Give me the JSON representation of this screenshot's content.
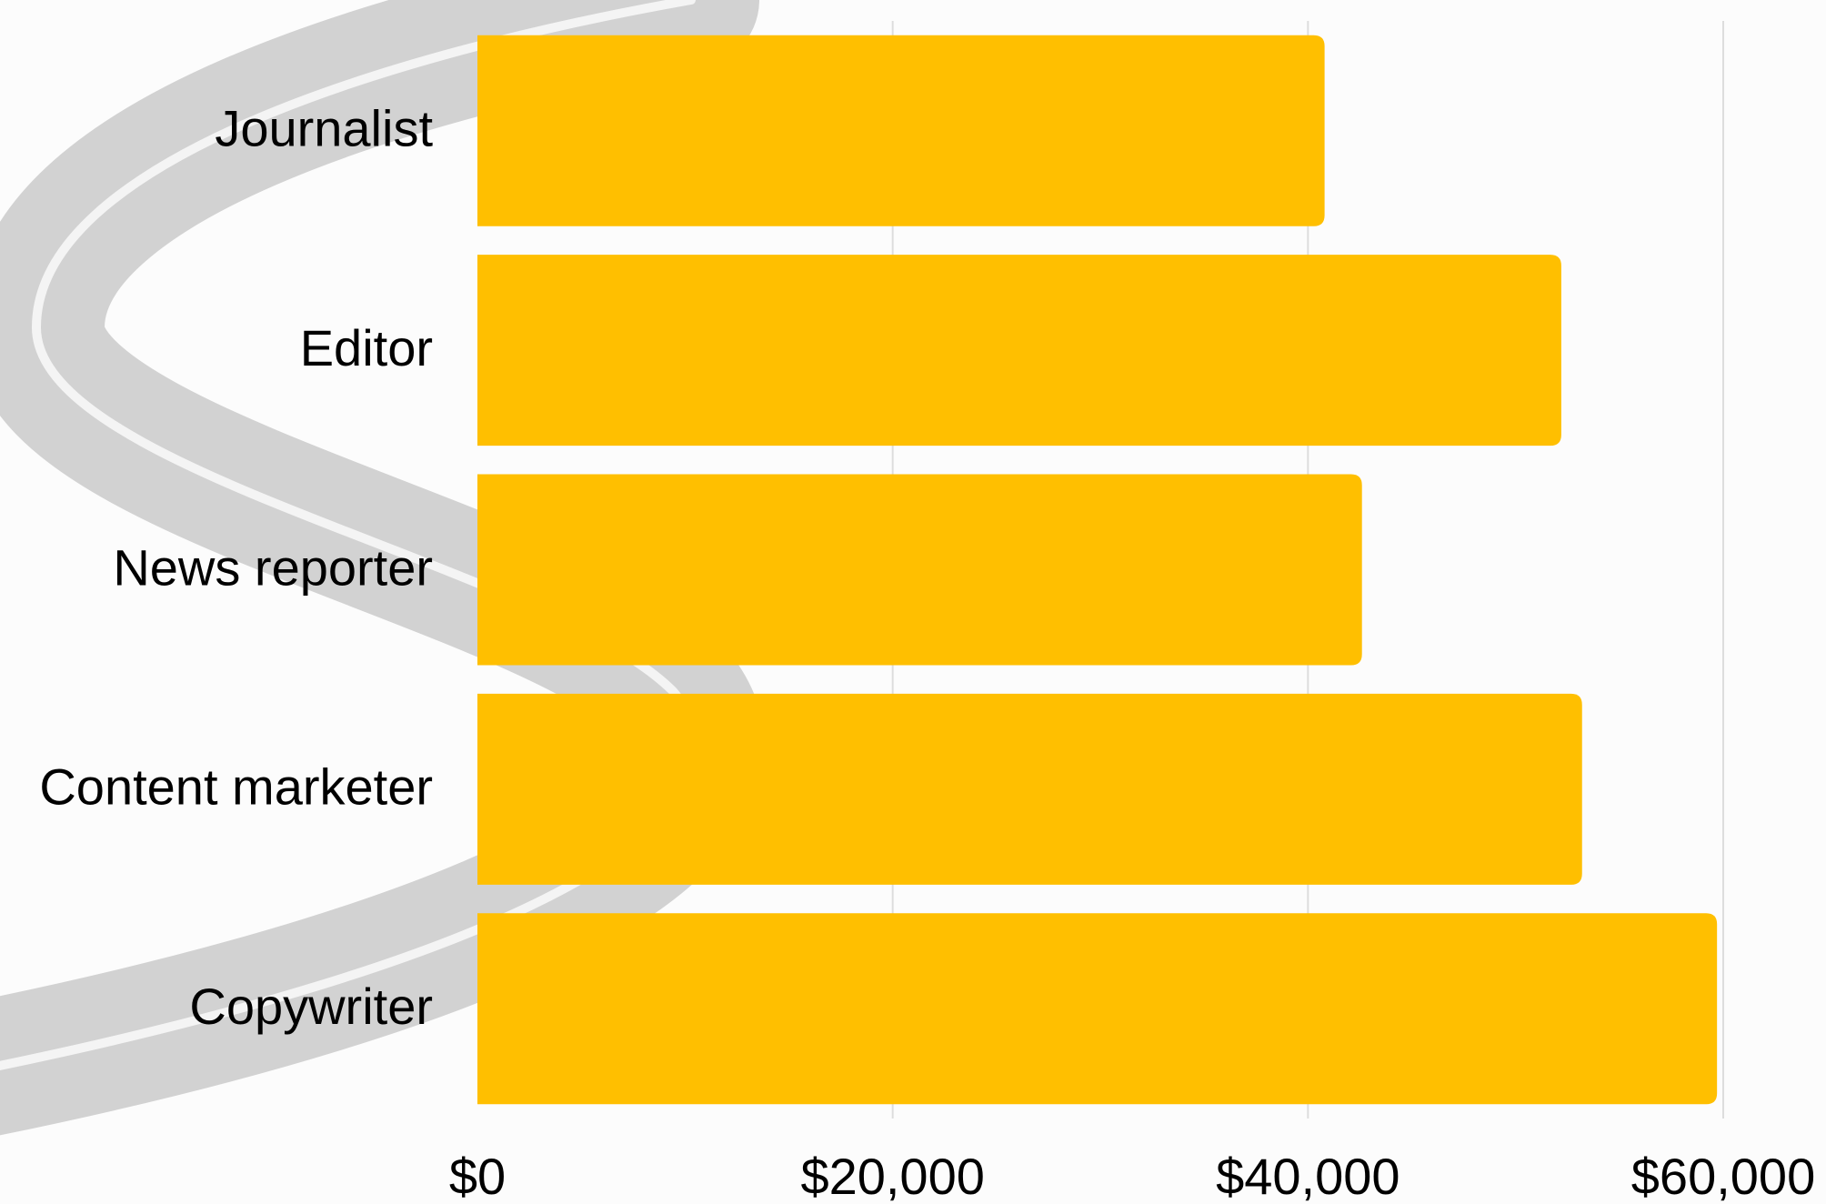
{
  "chart_data": {
    "type": "bar",
    "orientation": "horizontal",
    "categories": [
      "Journalist",
      "Editor",
      "News reporter",
      "Content marketer",
      "Copywriter"
    ],
    "values": [
      40800,
      52200,
      42600,
      53200,
      59700
    ],
    "color": "#ffbf00",
    "xlim": [
      0,
      60000
    ],
    "xticks": [
      {
        "value": 0,
        "label": "$0"
      },
      {
        "value": 20000,
        "label": "$20,000"
      },
      {
        "value": 40000,
        "label": "$40,000"
      },
      {
        "value": 60000,
        "label": "$60,000"
      }
    ],
    "grid": true
  }
}
